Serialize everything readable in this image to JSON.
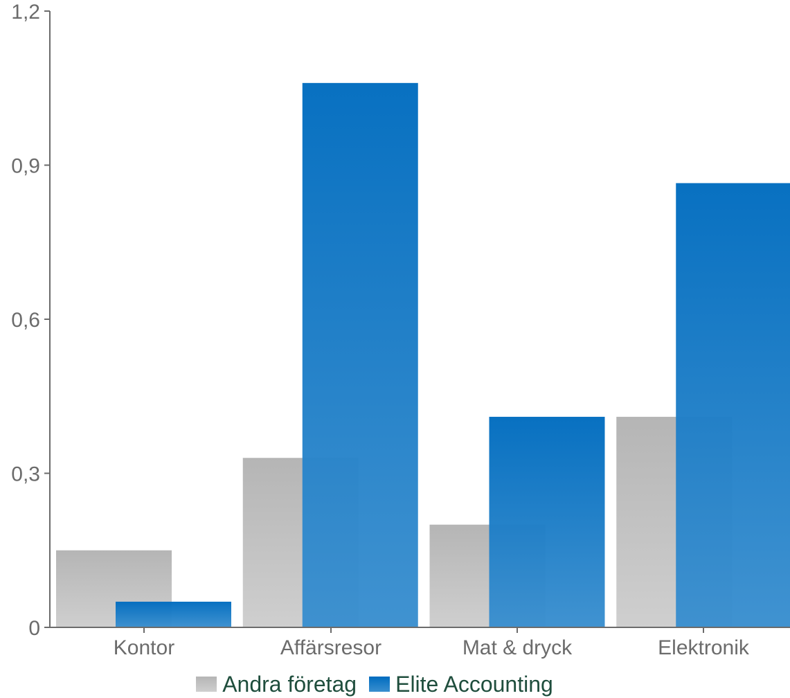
{
  "chart_data": {
    "type": "bar",
    "categories": [
      "Kontor",
      "Affärsresor",
      "Mat & dryck",
      "Elektronik"
    ],
    "series": [
      {
        "name": "Andra företag",
        "values": [
          0.15,
          0.33,
          0.2,
          0.41
        ],
        "color": "#bdbdbd"
      },
      {
        "name": "Elite Accounting",
        "values": [
          0.05,
          1.06,
          0.41,
          0.865
        ],
        "color": "#1a7ac4"
      }
    ],
    "y_ticks": [
      "0",
      "0,3",
      "0,6",
      "0,9",
      "1,2"
    ],
    "ylim": [
      0,
      1.2
    ],
    "grid": false,
    "legend_position": "bottom"
  },
  "legend": {
    "items": [
      {
        "label": "Andra företag"
      },
      {
        "label": "Elite Accounting"
      }
    ]
  }
}
